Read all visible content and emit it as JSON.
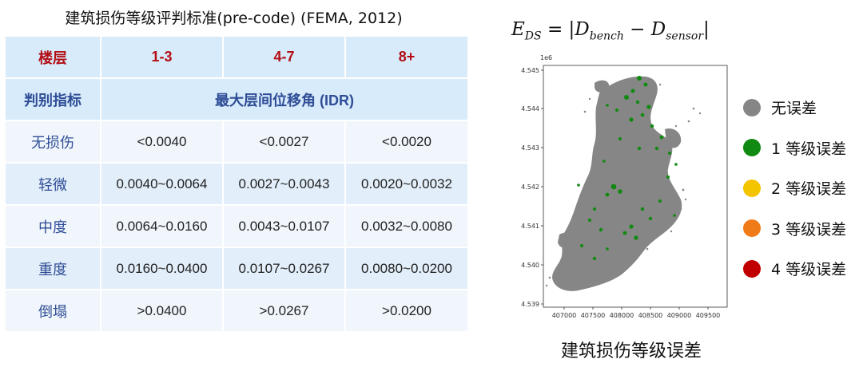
{
  "table": {
    "title": "建筑损伤等级评判标准(pre-code) (FEMA, 2012)",
    "header": [
      "楼层",
      "1-3",
      "4-7",
      "8+"
    ],
    "indicator_label": "判别指标",
    "indicator_value": "最大层间位移角 (IDR)",
    "rows": [
      {
        "label": "无损伤",
        "values": [
          "<0.0040",
          "<0.0027",
          "<0.0020"
        ]
      },
      {
        "label": "轻微",
        "values": [
          "0.0040~0.0064",
          "0.0027~0.0043",
          "0.0020~0.0032"
        ]
      },
      {
        "label": "中度",
        "values": [
          "0.0064~0.0160",
          "0.0043~0.0107",
          "0.0032~0.0080"
        ]
      },
      {
        "label": "重度",
        "values": [
          "0.0160~0.0400",
          "0.0107~0.0267",
          "0.0080~0.0200"
        ]
      },
      {
        "label": "倒塌",
        "values": [
          ">0.0400",
          ">0.0267",
          ">0.0200"
        ]
      }
    ]
  },
  "formula": {
    "lhs": "E",
    "lhs_sub": "DS",
    "eq": "=",
    "bar": "|",
    "t1": "D",
    "t1_sub": "bench",
    "minus": "−",
    "t2": "D",
    "t2_sub": "sensor"
  },
  "map": {
    "y_exponent": "1e6",
    "y_ticks": [
      "4.545",
      "4.544",
      "4.543",
      "4.542",
      "4.541",
      "4.540",
      "4.539"
    ],
    "x_ticks": [
      "407000",
      "407500",
      "408000",
      "408500",
      "409000",
      "409500"
    ],
    "colors": {
      "no_error": "#868686",
      "level1": "#108a10"
    }
  },
  "legend": [
    {
      "label": "无误差",
      "color": "#868686"
    },
    {
      "label": "1 等级误差",
      "color": "#108a10"
    },
    {
      "label": "2 等级误差",
      "color": "#f5c400"
    },
    {
      "label": "3 等级误差",
      "color": "#f07a18"
    },
    {
      "label": "4 等级误差",
      "color": "#c00000"
    }
  ],
  "caption": "建筑损伤等级误差"
}
